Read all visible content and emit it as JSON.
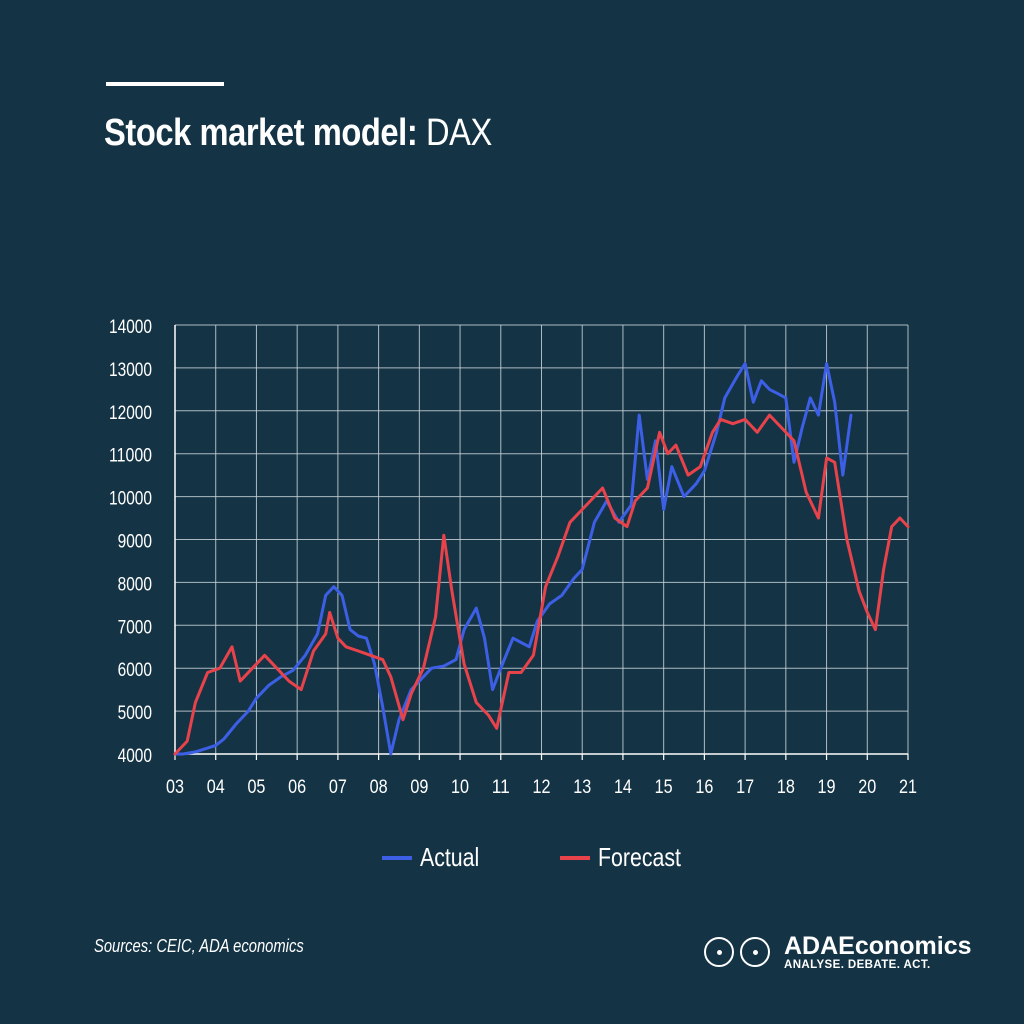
{
  "header": {
    "title_bold": "Stock market model:",
    "title_light": "DAX"
  },
  "chart_data": {
    "type": "line",
    "title": "Stock market model: DAX",
    "xlabel": "",
    "ylabel": "",
    "xlim": [
      2003,
      2021
    ],
    "ylim": [
      4000,
      14000
    ],
    "x_ticks": [
      "03",
      "04",
      "05",
      "06",
      "07",
      "08",
      "09",
      "10",
      "11",
      "12",
      "13",
      "14",
      "15",
      "16",
      "17",
      "18",
      "19",
      "20",
      "21"
    ],
    "y_ticks": [
      "4000",
      "5000",
      "6000",
      "7000",
      "8000",
      "9000",
      "10000",
      "11000",
      "12000",
      "13000",
      "14000"
    ],
    "grid": true,
    "legend_position": "bottom",
    "series": [
      {
        "name": "Actual",
        "color": "#3d5fe6",
        "x": [
          2003.0,
          2003.2,
          2003.5,
          2004.0,
          2004.2,
          2004.5,
          2004.8,
          2005.0,
          2005.3,
          2005.6,
          2005.9,
          2006.2,
          2006.5,
          2006.7,
          2006.9,
          2007.1,
          2007.3,
          2007.5,
          2007.7,
          2007.9,
          2008.1,
          2008.3,
          2008.5,
          2008.8,
          2009.0,
          2009.3,
          2009.6,
          2009.9,
          2010.1,
          2010.4,
          2010.6,
          2010.8,
          2011.0,
          2011.3,
          2011.5,
          2011.7,
          2011.9,
          2012.2,
          2012.5,
          2012.8,
          2013.0,
          2013.3,
          2013.6,
          2013.9,
          2014.2,
          2014.4,
          2014.6,
          2014.8,
          2015.0,
          2015.2,
          2015.5,
          2015.8,
          2016.0,
          2016.3,
          2016.5,
          2016.8,
          2017.0,
          2017.2,
          2017.4,
          2017.6,
          2017.8,
          2018.0,
          2018.2,
          2018.4,
          2018.6,
          2018.8,
          2019.0,
          2019.2,
          2019.4,
          2019.6
        ],
        "y": [
          4000,
          4000,
          4050,
          4200,
          4350,
          4700,
          5000,
          5300,
          5600,
          5800,
          5950,
          6300,
          6800,
          7700,
          7900,
          7700,
          6900,
          6750,
          6700,
          6100,
          5100,
          4000,
          4800,
          5500,
          5700,
          6000,
          6050,
          6200,
          6900,
          7400,
          6700,
          5500,
          6000,
          6700,
          6600,
          6500,
          7100,
          7500,
          7700,
          8100,
          8300,
          9400,
          9900,
          9400,
          9800,
          11900,
          10400,
          11300,
          9700,
          10700,
          10000,
          10300,
          10600,
          11500,
          12300,
          12800,
          13100,
          12200,
          12700,
          12500,
          12400,
          12300,
          10800,
          11600,
          12300,
          11900,
          13100,
          12200,
          10500,
          11900
        ]
      },
      {
        "name": "Forecast",
        "color": "#e8434b",
        "x": [
          2003.0,
          2003.3,
          2003.5,
          2003.8,
          2004.1,
          2004.4,
          2004.6,
          2004.9,
          2005.2,
          2005.5,
          2005.8,
          2006.1,
          2006.4,
          2006.7,
          2006.8,
          2007.0,
          2007.2,
          2007.5,
          2007.8,
          2008.1,
          2008.3,
          2008.6,
          2008.8,
          2009.1,
          2009.4,
          2009.6,
          2009.8,
          2010.1,
          2010.4,
          2010.7,
          2010.9,
          2011.2,
          2011.5,
          2011.8,
          2012.1,
          2012.4,
          2012.7,
          2013.0,
          2013.2,
          2013.5,
          2013.8,
          2014.1,
          2014.3,
          2014.6,
          2014.9,
          2015.1,
          2015.3,
          2015.6,
          2015.9,
          2016.2,
          2016.4,
          2016.7,
          2017.0,
          2017.3,
          2017.6,
          2017.9,
          2018.2,
          2018.5,
          2018.8,
          2019.0,
          2019.2,
          2019.5,
          2019.8,
          2020.0,
          2020.2,
          2020.4,
          2020.6,
          2020.8,
          2021.0
        ],
        "y": [
          4000,
          4300,
          5200,
          5900,
          6000,
          6500,
          5700,
          6000,
          6300,
          6000,
          5700,
          5500,
          6400,
          6800,
          7300,
          6700,
          6500,
          6400,
          6300,
          6200,
          5800,
          4800,
          5400,
          6000,
          7200,
          9100,
          7800,
          6100,
          5200,
          4900,
          4600,
          5900,
          5900,
          6300,
          7900,
          8600,
          9400,
          9700,
          9900,
          10200,
          9500,
          9300,
          9900,
          10200,
          11500,
          11000,
          11200,
          10500,
          10700,
          11500,
          11800,
          11700,
          11800,
          11500,
          11900,
          11600,
          11300,
          10100,
          9500,
          10900,
          10800,
          9000,
          7800,
          7300,
          6900,
          8300,
          9300,
          9500,
          9300
        ]
      }
    ]
  },
  "legend": {
    "actual_label": "Actual",
    "forecast_label": "Forecast",
    "actual_color": "#3d5fe6",
    "forecast_color": "#e8434b"
  },
  "footer": {
    "sources": "Sources: CEIC, ADA economics",
    "brand": "ADAEconomics",
    "tagline": "ANALYSE. DEBATE. ACT."
  },
  "colors": {
    "background": "#143445",
    "grid": "#c9d2d8",
    "text": "#ffffff"
  }
}
